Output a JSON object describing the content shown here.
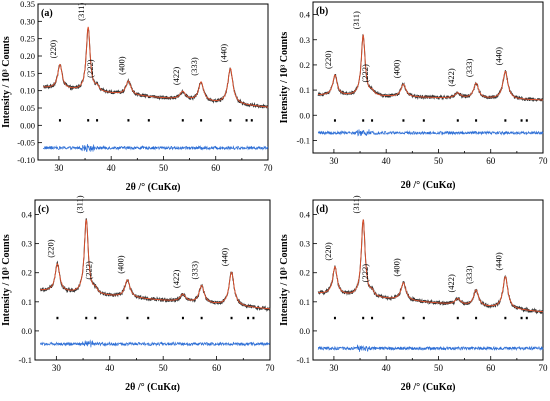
{
  "figure": {
    "xlabel": "2θ /° (CuKα)",
    "ylabel": "Intensity / 10³ Counts",
    "colors": {
      "observed": "#333333",
      "calculated": "#e0522e",
      "difference": "#2e6fd6",
      "bragg_marks": "#000000"
    }
  },
  "chart_data": [
    {
      "panel": "(a)",
      "type": "line",
      "xlim": [
        26,
        70
      ],
      "ylim": [
        -0.1,
        0.35
      ],
      "xticks": [
        30,
        40,
        50,
        60,
        70
      ],
      "yticks": [
        -0.1,
        -0.05,
        0.0,
        0.05,
        0.1,
        0.15,
        0.2,
        0.25,
        0.3,
        0.35
      ],
      "ytick_labels": [
        "-0.10",
        "-0.05",
        "0.00",
        "0.05",
        "0.10",
        "0.15",
        "0.20",
        "0.25",
        "0.30",
        "0.35"
      ],
      "background": {
        "start": 0.11,
        "end": 0.052
      },
      "peaks": [
        {
          "label": "(220)",
          "x": 30.2,
          "height": 0.07,
          "width": 0.8
        },
        {
          "label": "(311)",
          "x": 35.6,
          "height": 0.185,
          "width": 0.7
        },
        {
          "label": "(222)",
          "x": 37.3,
          "height": 0.012,
          "width": 0.7
        },
        {
          "label": "(400)",
          "x": 43.3,
          "height": 0.04,
          "width": 0.9
        },
        {
          "label": "(422)",
          "x": 53.7,
          "height": 0.023,
          "width": 1.0
        },
        {
          "label": "(333)",
          "x": 57.2,
          "height": 0.055,
          "width": 0.9
        },
        {
          "label": "(440)",
          "x": 62.8,
          "height": 0.102,
          "width": 0.9
        }
      ],
      "bragg_positions": [
        30.2,
        35.6,
        37.3,
        43.3,
        47.2,
        53.7,
        57.2,
        62.8,
        65.9,
        66.9
      ],
      "bragg_y": 0.015,
      "difference_offset": -0.065
    },
    {
      "panel": "(b)",
      "type": "line",
      "xlim": [
        26,
        70
      ],
      "ylim": [
        -0.15,
        0.45
      ],
      "xticks": [
        30,
        40,
        50,
        60,
        70
      ],
      "yticks": [
        -0.1,
        0.0,
        0.1,
        0.2,
        0.3,
        0.4
      ],
      "ytick_labels": [
        "-0.1",
        "0.0",
        "0.1",
        "0.2",
        "0.3",
        "0.4"
      ],
      "background": {
        "start": 0.08,
        "end": 0.06
      },
      "peaks": [
        {
          "label": "(220)",
          "x": 30.2,
          "height": 0.08,
          "width": 0.8
        },
        {
          "label": "(311)",
          "x": 35.6,
          "height": 0.24,
          "width": 0.7
        },
        {
          "label": "(222)",
          "x": 37.3,
          "height": 0.015,
          "width": 0.7
        },
        {
          "label": "(400)",
          "x": 43.3,
          "height": 0.05,
          "width": 0.9
        },
        {
          "label": "(422)",
          "x": 53.7,
          "height": 0.02,
          "width": 1.0
        },
        {
          "label": "(333)",
          "x": 57.2,
          "height": 0.06,
          "width": 0.9
        },
        {
          "label": "(440)",
          "x": 62.8,
          "height": 0.11,
          "width": 0.9
        }
      ],
      "bragg_positions": [
        30.2,
        35.6,
        37.3,
        43.3,
        47.2,
        53.7,
        57.2,
        62.8,
        65.9,
        66.9
      ],
      "bragg_y": -0.02,
      "difference_offset": -0.07
    },
    {
      "panel": "(c)",
      "type": "line",
      "xlim": [
        26,
        70
      ],
      "ylim": [
        -0.1,
        0.45
      ],
      "xticks": [
        30,
        40,
        50,
        60,
        70
      ],
      "yticks": [
        -0.1,
        0.0,
        0.1,
        0.2,
        0.3,
        0.4
      ],
      "ytick_labels": [
        "-0.1",
        "0.0",
        "0.1",
        "0.2",
        "0.3",
        "0.4"
      ],
      "background": {
        "start": 0.14,
        "end": 0.075
      },
      "peaks": [
        {
          "label": "(220)",
          "x": 30.2,
          "height": 0.095,
          "width": 0.8
        },
        {
          "label": "(311)",
          "x": 35.6,
          "height": 0.255,
          "width": 0.7
        },
        {
          "label": "(222)",
          "x": 37.3,
          "height": 0.015,
          "width": 0.7
        },
        {
          "label": "(400)",
          "x": 43.3,
          "height": 0.06,
          "width": 0.9
        },
        {
          "label": "(422)",
          "x": 53.7,
          "height": 0.025,
          "width": 1.0
        },
        {
          "label": "(333)",
          "x": 57.2,
          "height": 0.06,
          "width": 0.9
        },
        {
          "label": "(440)",
          "x": 62.8,
          "height": 0.115,
          "width": 0.9
        }
      ],
      "bragg_positions": [
        30.2,
        35.6,
        37.3,
        43.3,
        47.2,
        53.7,
        57.2,
        62.8,
        65.9,
        66.9
      ],
      "bragg_y": 0.045,
      "difference_offset": -0.045
    },
    {
      "panel": "(d)",
      "type": "line",
      "xlim": [
        26,
        70
      ],
      "ylim": [
        -0.1,
        0.45
      ],
      "xticks": [
        30,
        40,
        50,
        60,
        70
      ],
      "yticks": [
        -0.1,
        0.0,
        0.1,
        0.2,
        0.3,
        0.4
      ],
      "ytick_labels": [
        "-0.1",
        "0.0",
        "0.1",
        "0.2",
        "0.3",
        "0.4"
      ],
      "background": {
        "start": 0.13,
        "end": 0.065
      },
      "peaks": [
        {
          "label": "(220)",
          "x": 30.2,
          "height": 0.095,
          "width": 0.8
        },
        {
          "label": "(311)",
          "x": 35.6,
          "height": 0.265,
          "width": 0.7
        },
        {
          "label": "(222)",
          "x": 37.3,
          "height": 0.015,
          "width": 0.7
        },
        {
          "label": "(400)",
          "x": 43.3,
          "height": 0.06,
          "width": 0.9
        },
        {
          "label": "(422)",
          "x": 53.7,
          "height": 0.02,
          "width": 1.0
        },
        {
          "label": "(333)",
          "x": 57.2,
          "height": 0.055,
          "width": 0.9
        },
        {
          "label": "(440)",
          "x": 62.8,
          "height": 0.11,
          "width": 0.9
        }
      ],
      "bragg_positions": [
        30.2,
        35.6,
        37.3,
        43.3,
        47.2,
        53.7,
        57.2,
        62.8,
        65.9,
        66.9
      ],
      "bragg_y": 0.045,
      "difference_offset": -0.06
    }
  ]
}
